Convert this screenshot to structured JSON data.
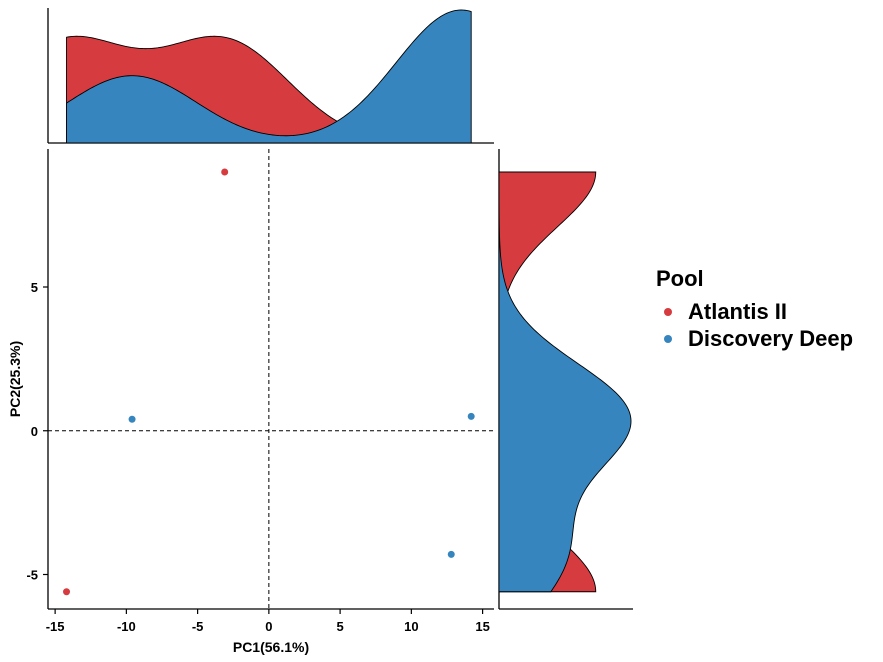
{
  "chart_data": {
    "type": "scatter",
    "xlabel": "PC1(56.1%)",
    "ylabel": "PC2(25.3%)",
    "xlim": [
      -15.5,
      15.8
    ],
    "ylim": [
      -6.2,
      9.8
    ],
    "xticks": [
      -15,
      -10,
      -5,
      0,
      5,
      10,
      15
    ],
    "yticks": [
      -5,
      0,
      5
    ],
    "reference_lines": {
      "x": 0,
      "y": 0,
      "style": "dashed"
    },
    "grid": false,
    "marginal_density": true,
    "legend": {
      "title": "Pool",
      "placement": "right"
    },
    "series": [
      {
        "name": "Atlantis II",
        "color": "#d63b3f",
        "points": [
          {
            "x": -3.1,
            "y": 9.0
          },
          {
            "x": -14.2,
            "y": -5.6
          }
        ]
      },
      {
        "name": "Discovery Deep",
        "color": "#3685be",
        "points": [
          {
            "x": -9.6,
            "y": 0.4
          },
          {
            "x": 14.2,
            "y": 0.5
          },
          {
            "x": 12.8,
            "y": -4.3
          }
        ]
      }
    ]
  }
}
